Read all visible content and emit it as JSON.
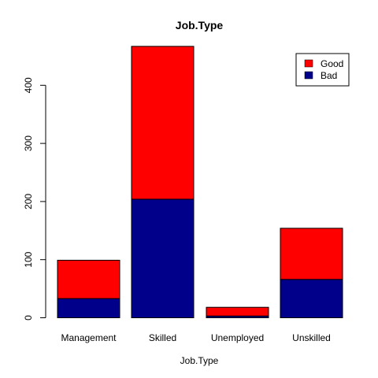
{
  "chart_data": {
    "type": "bar",
    "stacked": true,
    "title": "Job.Type",
    "xlabel": "Job.Type",
    "ylabel": "",
    "categories": [
      "Management",
      "Skilled",
      "Unemployed",
      "Unskilled"
    ],
    "series": [
      {
        "name": "Bad",
        "color": "#00008B",
        "values": [
          33,
          204,
          3,
          66
        ]
      },
      {
        "name": "Good",
        "color": "#FF0000",
        "values": [
          66,
          263,
          15,
          88
        ]
      }
    ],
    "legend_order": [
      "Good",
      "Bad"
    ],
    "yticks": [
      0,
      100,
      200,
      300,
      400
    ],
    "ylim": [
      0,
      470
    ],
    "grid": false,
    "legend_position": "top-right"
  }
}
